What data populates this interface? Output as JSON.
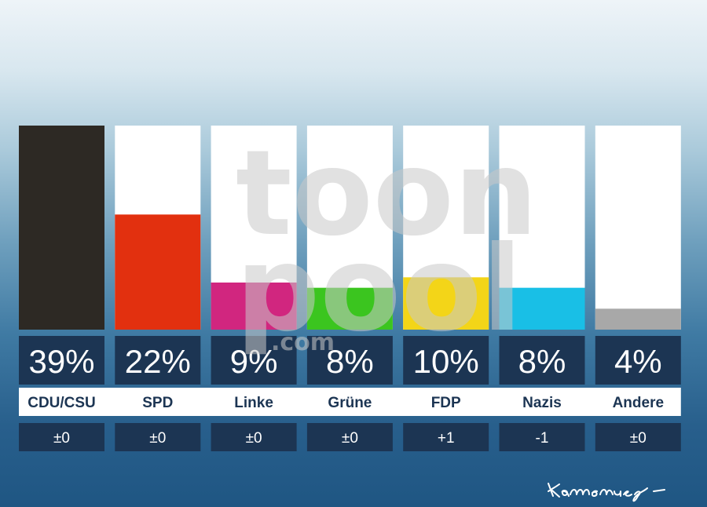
{
  "chart_data": {
    "type": "bar",
    "categories": [
      "CDU/CSU",
      "SPD",
      "Linke",
      "Grüne",
      "FDP",
      "Nazis",
      "Andere"
    ],
    "values": [
      39,
      22,
      9,
      8,
      10,
      8,
      4
    ],
    "value_labels": [
      "39%",
      "22%",
      "9%",
      "8%",
      "10%",
      "8%",
      "4%"
    ],
    "changes": [
      "±0",
      "±0",
      "±0",
      "±0",
      "+1",
      "-1",
      "±0"
    ],
    "colors": [
      "#2d2924",
      "#e2300f",
      "#d1267f",
      "#3bc51f",
      "#f3d518",
      "#19bfe6",
      "#a8a8a8"
    ],
    "ylim": [
      0,
      39
    ]
  },
  "watermark": {
    "lines": [
      "toon",
      "pool"
    ],
    "suffix": ".com"
  },
  "signature": "Kamensky"
}
